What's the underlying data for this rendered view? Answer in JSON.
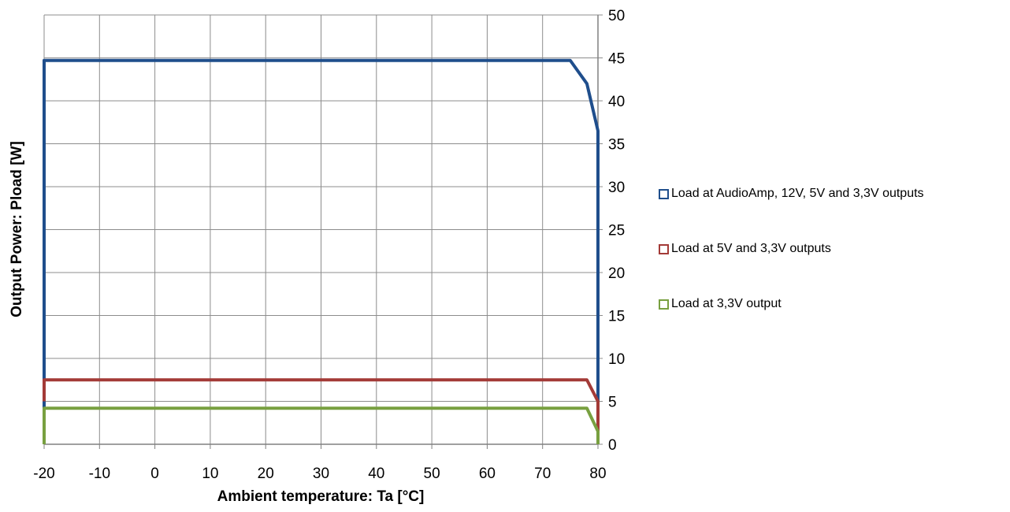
{
  "chart_data": {
    "type": "line",
    "title": "",
    "xlabel": "Ambient temperature: Ta [°C]",
    "ylabel": "Output Power: Pload [W]",
    "xlim": [
      -20,
      80
    ],
    "ylim": [
      0,
      50
    ],
    "x_ticks": [
      "-20",
      "-10",
      "0",
      "10",
      "20",
      "30",
      "40",
      "50",
      "60",
      "70",
      "80"
    ],
    "y_ticks": [
      "0",
      "5",
      "10",
      "15",
      "20",
      "25",
      "30",
      "35",
      "40",
      "45",
      "50"
    ],
    "y_axis_side": "right",
    "grid": true,
    "legend_position": "right",
    "series": [
      {
        "name": "Load at AudioAmp, 12V, 5V and 3,3V outputs",
        "color": "#1f4e8c",
        "x": [
          -20,
          -20,
          75,
          78,
          80,
          80
        ],
        "y": [
          0,
          44.7,
          44.7,
          42,
          36.5,
          0
        ]
      },
      {
        "name": "Load at 5V and 3,3V outputs",
        "color": "#a33a37",
        "x": [
          -20,
          -20,
          78,
          80,
          80
        ],
        "y": [
          5,
          7.5,
          7.5,
          5,
          1.5
        ]
      },
      {
        "name": "Load at 3,3V output",
        "color": "#78a040",
        "x": [
          -20,
          -20,
          78,
          80,
          80
        ],
        "y": [
          0,
          4.2,
          4.2,
          1.5,
          0
        ]
      }
    ]
  }
}
